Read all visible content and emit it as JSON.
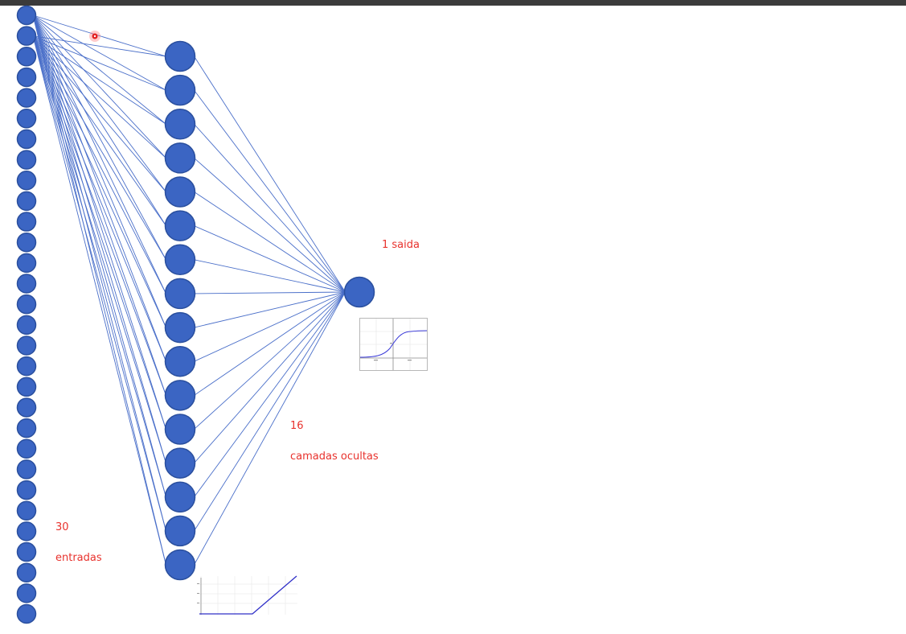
{
  "network": {
    "input_count": 30,
    "hidden_count": 16,
    "output_count": 1,
    "node_color": "#3b65c3",
    "node_stroke": "#2a4f9e",
    "edge_color": "#4a6fc9"
  },
  "labels": {
    "input_count": "30",
    "input_word": "entradas",
    "hidden_count": "16",
    "hidden_word": "camadas ocultas",
    "output": "1 saida"
  },
  "colors": {
    "label": "#e8322d",
    "topbar": "#3b3b3b",
    "cursor": "#ff2a2a"
  },
  "insets": {
    "output_activation": "sigmoid-plot",
    "hidden_activation": "relu-plot"
  }
}
